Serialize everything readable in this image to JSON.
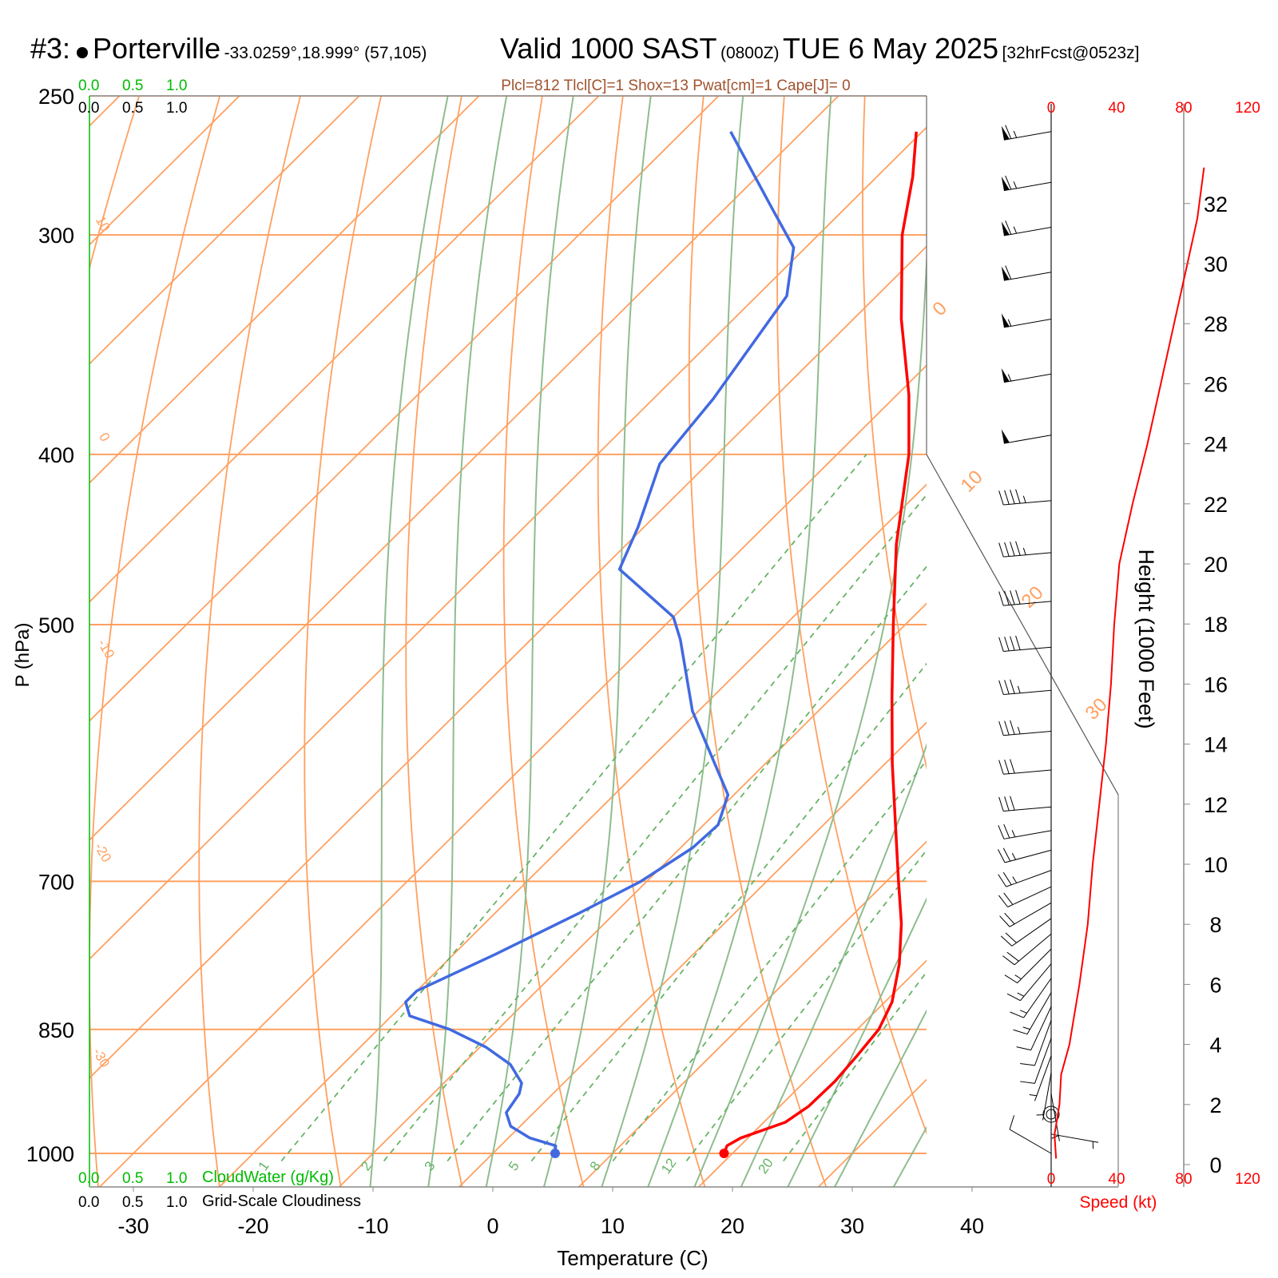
{
  "header": {
    "station_num": "#3:",
    "station": "Porterville",
    "coords": "-33.0259°,18.999° (57,105)",
    "valid": "Valid 1000 SAST",
    "zulu": "(0800Z)",
    "date": "TUE 6 May 2025",
    "forecast": "[32hrFcst@0523z]"
  },
  "indices": "Plcl=812 Tlcl[C]=1 Shox=13 Pwat[cm]=1 Cape[J]= 0",
  "colors": {
    "temperature": "#ff0000",
    "dewpoint": "#4169e1",
    "isotherm_isobar": "#ffa060",
    "moist_adiabat": "#8fbc8f",
    "mixing_ratio": "#66b366",
    "cloudwater": "#00bb00",
    "speed": "#ff0000"
  },
  "scales": {
    "cloudwater_ticks": [
      "0.0",
      "0.5",
      "1.0"
    ],
    "cloudiness_ticks": [
      "0.0",
      "0.5",
      "1.0"
    ],
    "cloudwater_label": "CloudWater (g/Kg)",
    "cloudiness_label": "Grid-Scale Cloudiness",
    "speed_ticks": [
      "0",
      "40",
      "80",
      "120"
    ],
    "speed_label": "Speed (kt)"
  },
  "chart_data": {
    "type": "skew-t log-p sounding",
    "xlabel": "Temperature (C)",
    "ylabel": "P (hPa)",
    "y2label": "Height (1000 Feet)",
    "xlim": [
      -33,
      41
    ],
    "ylim_hpa": [
      1000,
      250
    ],
    "x_ticks": [
      -30,
      -20,
      -10,
      0,
      10,
      20,
      30,
      40
    ],
    "pressure_ticks": [
      1000,
      850,
      700,
      500,
      400,
      300,
      250
    ],
    "height_ticks": [
      0,
      2,
      4,
      6,
      8,
      10,
      12,
      14,
      16,
      18,
      20,
      22,
      24,
      26,
      28,
      30,
      32
    ],
    "dry_adiabat_labels": [
      "10",
      "0",
      "-10",
      "-20",
      "-30"
    ],
    "isotherm_labels": [
      "0",
      "10",
      "20",
      "30"
    ],
    "mixing_ratio_labels": [
      "1",
      "2",
      "3",
      "5",
      "8",
      "12",
      "20"
    ],
    "temperature_profile": [
      {
        "p": 1000,
        "t": 19.3
      },
      {
        "p": 990,
        "t": 18.9
      },
      {
        "p": 980,
        "t": 19.4
      },
      {
        "p": 960,
        "t": 21.8
      },
      {
        "p": 940,
        "t": 22.4
      },
      {
        "p": 910,
        "t": 22.5
      },
      {
        "p": 880,
        "t": 22.2
      },
      {
        "p": 850,
        "t": 21.8
      },
      {
        "p": 820,
        "t": 20.6
      },
      {
        "p": 780,
        "t": 18.0
      },
      {
        "p": 740,
        "t": 14.8
      },
      {
        "p": 700,
        "t": 11.0
      },
      {
        "p": 650,
        "t": 6.0
      },
      {
        "p": 600,
        "t": 0.6
      },
      {
        "p": 550,
        "t": -5.0
      },
      {
        "p": 500,
        "t": -11.0
      },
      {
        "p": 450,
        "t": -17.5
      },
      {
        "p": 400,
        "t": -24.0
      },
      {
        "p": 370,
        "t": -29.0
      },
      {
        "p": 335,
        "t": -36.0
      },
      {
        "p": 300,
        "t": -43.0
      },
      {
        "p": 278,
        "t": -47.0
      },
      {
        "p": 262,
        "t": -50.5
      }
    ],
    "dewpoint_profile": [
      {
        "p": 1000,
        "t": 5.2
      },
      {
        "p": 990,
        "t": 4.6
      },
      {
        "p": 980,
        "t": 1.8
      },
      {
        "p": 965,
        "t": -0.8
      },
      {
        "p": 948,
        "t": -2.3
      },
      {
        "p": 925,
        "t": -2.8
      },
      {
        "p": 912,
        "t": -3.5
      },
      {
        "p": 890,
        "t": -6.0
      },
      {
        "p": 870,
        "t": -9.5
      },
      {
        "p": 850,
        "t": -14.0
      },
      {
        "p": 835,
        "t": -18.5
      },
      {
        "p": 820,
        "t": -20.0
      },
      {
        "p": 808,
        "t": -20.0
      },
      {
        "p": 770,
        "t": -16.5
      },
      {
        "p": 730,
        "t": -13.0
      },
      {
        "p": 700,
        "t": -10.5
      },
      {
        "p": 670,
        "t": -9.0
      },
      {
        "p": 650,
        "t": -8.8
      },
      {
        "p": 625,
        "t": -10.5
      },
      {
        "p": 560,
        "t": -20.5
      },
      {
        "p": 510,
        "t": -27.5
      },
      {
        "p": 495,
        "t": -30.0
      },
      {
        "p": 465,
        "t": -38.5
      },
      {
        "p": 440,
        "t": -40.5
      },
      {
        "p": 405,
        "t": -44.0
      },
      {
        "p": 372,
        "t": -45.0
      },
      {
        "p": 325,
        "t": -47.5
      },
      {
        "p": 305,
        "t": -51.0
      },
      {
        "p": 290,
        "t": -56.0
      },
      {
        "p": 262,
        "t": -66.0
      }
    ],
    "height_profile_kft": [
      {
        "p": 1000,
        "h": 0.3
      },
      {
        "p": 980,
        "h": 1.0
      },
      {
        "p": 950,
        "h": 2.0
      },
      {
        "p": 900,
        "h": 3.5
      },
      {
        "p": 850,
        "h": 5.0
      },
      {
        "p": 800,
        "h": 6.6
      },
      {
        "p": 750,
        "h": 8.3
      },
      {
        "p": 700,
        "h": 10.0
      },
      {
        "p": 650,
        "h": 11.9
      },
      {
        "p": 600,
        "h": 13.9
      },
      {
        "p": 550,
        "h": 16.0
      },
      {
        "p": 500,
        "h": 18.3
      },
      {
        "p": 450,
        "h": 20.8
      },
      {
        "p": 400,
        "h": 23.6
      },
      {
        "p": 350,
        "h": 26.8
      },
      {
        "p": 300,
        "h": 30.2
      },
      {
        "p": 262,
        "h": 33.2
      }
    ],
    "speed_profile_kt": [
      {
        "h": 0.2,
        "s": 3
      },
      {
        "h": 1.0,
        "s": 2
      },
      {
        "h": 2.0,
        "s": 5
      },
      {
        "h": 3.0,
        "s": 6
      },
      {
        "h": 4.0,
        "s": 11
      },
      {
        "h": 5.0,
        "s": 14
      },
      {
        "h": 6.0,
        "s": 17
      },
      {
        "h": 8.0,
        "s": 22
      },
      {
        "h": 10.0,
        "s": 25
      },
      {
        "h": 12.0,
        "s": 29
      },
      {
        "h": 14.0,
        "s": 33
      },
      {
        "h": 16.0,
        "s": 36
      },
      {
        "h": 18.0,
        "s": 38
      },
      {
        "h": 20.0,
        "s": 41
      },
      {
        "h": 22.0,
        "s": 49
      },
      {
        "h": 24.0,
        "s": 58
      },
      {
        "h": 26.0,
        "s": 66
      },
      {
        "h": 28.0,
        "s": 74
      },
      {
        "h": 30.0,
        "s": 82
      },
      {
        "h": 31.5,
        "s": 88
      },
      {
        "h": 33.2,
        "s": 92
      }
    ],
    "wind_barbs": [
      {
        "p": 262,
        "dir": 260,
        "spd": 65
      },
      {
        "p": 280,
        "dir": 260,
        "spd": 65
      },
      {
        "p": 297,
        "dir": 260,
        "spd": 65
      },
      {
        "p": 315,
        "dir": 260,
        "spd": 60
      },
      {
        "p": 335,
        "dir": 260,
        "spd": 55
      },
      {
        "p": 360,
        "dir": 260,
        "spd": 55
      },
      {
        "p": 390,
        "dir": 260,
        "spd": 50
      },
      {
        "p": 425,
        "dir": 265,
        "spd": 45
      },
      {
        "p": 455,
        "dir": 265,
        "spd": 45
      },
      {
        "p": 485,
        "dir": 265,
        "spd": 40
      },
      {
        "p": 515,
        "dir": 265,
        "spd": 40
      },
      {
        "p": 545,
        "dir": 265,
        "spd": 35
      },
      {
        "p": 575,
        "dir": 265,
        "spd": 35
      },
      {
        "p": 605,
        "dir": 265,
        "spd": 30
      },
      {
        "p": 635,
        "dir": 265,
        "spd": 30
      },
      {
        "p": 655,
        "dir": 260,
        "spd": 25
      },
      {
        "p": 672,
        "dir": 255,
        "spd": 25
      },
      {
        "p": 690,
        "dir": 250,
        "spd": 25
      },
      {
        "p": 705,
        "dir": 245,
        "spd": 20
      },
      {
        "p": 720,
        "dir": 240,
        "spd": 20
      },
      {
        "p": 735,
        "dir": 235,
        "spd": 20
      },
      {
        "p": 750,
        "dir": 230,
        "spd": 20
      },
      {
        "p": 765,
        "dir": 225,
        "spd": 15
      },
      {
        "p": 780,
        "dir": 220,
        "spd": 15
      },
      {
        "p": 795,
        "dir": 215,
        "spd": 15
      },
      {
        "p": 810,
        "dir": 210,
        "spd": 15
      },
      {
        "p": 825,
        "dir": 205,
        "spd": 10
      },
      {
        "p": 840,
        "dir": 200,
        "spd": 10
      },
      {
        "p": 860,
        "dir": 200,
        "spd": 10
      },
      {
        "p": 880,
        "dir": 200,
        "spd": 5
      },
      {
        "p": 900,
        "dir": 190,
        "spd": 5
      },
      {
        "p": 925,
        "dir": 170,
        "spd": 5
      },
      {
        "p": 950,
        "dir": 0,
        "spd": 0
      },
      {
        "p": 975,
        "dir": 100,
        "spd": 5
      },
      {
        "p": 1000,
        "dir": 300,
        "spd": 10
      }
    ],
    "surface_temp_c": 19.3,
    "surface_dewpoint_c": 5.2
  }
}
